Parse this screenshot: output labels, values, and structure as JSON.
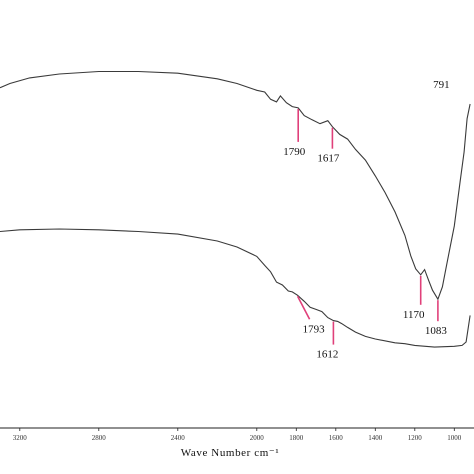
{
  "chart_data": {
    "type": "line",
    "xlabel": "Wave Number cm⁻¹",
    "xlim": [
      3300,
      900
    ],
    "x_reversed": true,
    "x_ticks": [
      3200,
      2800,
      2400,
      2000,
      1800,
      1600,
      1400,
      1200,
      1000
    ],
    "x_tick_labels": [
      "3200",
      "2800",
      "2400",
      "2000",
      "1800",
      "1600",
      "1400",
      "1200",
      "1000"
    ],
    "ylim": [
      0,
      100
    ],
    "y_visible": false,
    "grid": false,
    "series": [
      {
        "points": [
          [
            3300,
            79.5
          ],
          [
            3250,
            80.5
          ],
          [
            3150,
            81.8
          ],
          [
            3000,
            82.7
          ],
          [
            2800,
            83.3
          ],
          [
            2600,
            83.3
          ],
          [
            2400,
            82.9
          ],
          [
            2200,
            81.6
          ],
          [
            2100,
            80.5
          ],
          [
            2000,
            78.9
          ],
          [
            1960,
            78.5
          ],
          [
            1930,
            76.8
          ],
          [
            1900,
            76.2
          ],
          [
            1880,
            77.6
          ],
          [
            1850,
            76.0
          ],
          [
            1820,
            75.1
          ],
          [
            1790,
            74.8
          ],
          [
            1760,
            73.0
          ],
          [
            1720,
            72.0
          ],
          [
            1680,
            71.1
          ],
          [
            1640,
            71.8
          ],
          [
            1617,
            70.4
          ],
          [
            1580,
            68.6
          ],
          [
            1540,
            67.5
          ],
          [
            1500,
            65.1
          ],
          [
            1450,
            62.6
          ],
          [
            1400,
            58.9
          ],
          [
            1350,
            55.0
          ],
          [
            1300,
            50.5
          ],
          [
            1250,
            45.0
          ],
          [
            1220,
            40.2
          ],
          [
            1195,
            37.2
          ],
          [
            1170,
            35.8
          ],
          [
            1150,
            37.0
          ],
          [
            1130,
            34.5
          ],
          [
            1110,
            32.2
          ],
          [
            1083,
            30.1
          ],
          [
            1060,
            33.0
          ],
          [
            1040,
            37.7
          ],
          [
            1000,
            47.2
          ],
          [
            970,
            57.7
          ],
          [
            950,
            64.5
          ],
          [
            935,
            72.3
          ],
          [
            920,
            75.7
          ]
        ]
      },
      {
        "points": [
          [
            3300,
            45.9
          ],
          [
            3200,
            46.3
          ],
          [
            3000,
            46.5
          ],
          [
            2800,
            46.3
          ],
          [
            2600,
            45.9
          ],
          [
            2400,
            45.3
          ],
          [
            2200,
            43.7
          ],
          [
            2100,
            42.3
          ],
          [
            2000,
            40.1
          ],
          [
            1960,
            38.0
          ],
          [
            1930,
            36.5
          ],
          [
            1900,
            34.1
          ],
          [
            1870,
            33.4
          ],
          [
            1840,
            32.0
          ],
          [
            1820,
            31.8
          ],
          [
            1793,
            31.0
          ],
          [
            1760,
            29.6
          ],
          [
            1730,
            28.2
          ],
          [
            1700,
            27.7
          ],
          [
            1670,
            27.2
          ],
          [
            1640,
            25.8
          ],
          [
            1612,
            25.1
          ],
          [
            1590,
            24.9
          ],
          [
            1570,
            24.4
          ],
          [
            1540,
            23.5
          ],
          [
            1500,
            22.4
          ],
          [
            1450,
            21.4
          ],
          [
            1400,
            20.8
          ],
          [
            1300,
            19.9
          ],
          [
            1250,
            19.7
          ],
          [
            1200,
            19.3
          ],
          [
            1100,
            18.9
          ],
          [
            1000,
            19.1
          ],
          [
            960,
            19.3
          ],
          [
            940,
            20.1
          ],
          [
            920,
            26.3
          ]
        ]
      }
    ],
    "peaks": [
      {
        "label": "1790",
        "x": 1790,
        "series": 0
      },
      {
        "label": "1617",
        "x": 1617,
        "series": 0
      },
      {
        "label": "1170",
        "x": 1170,
        "series": 0
      },
      {
        "label": "1083",
        "x": 1083,
        "series": 0
      },
      {
        "label": "791",
        "x": 920,
        "series": 0
      },
      {
        "label": "1793",
        "x": 1793,
        "series": 1
      },
      {
        "label": "1612",
        "x": 1612,
        "series": 1
      }
    ],
    "colors": {
      "spectrum": "#3a3a3a",
      "marker": "#e0407a"
    }
  }
}
